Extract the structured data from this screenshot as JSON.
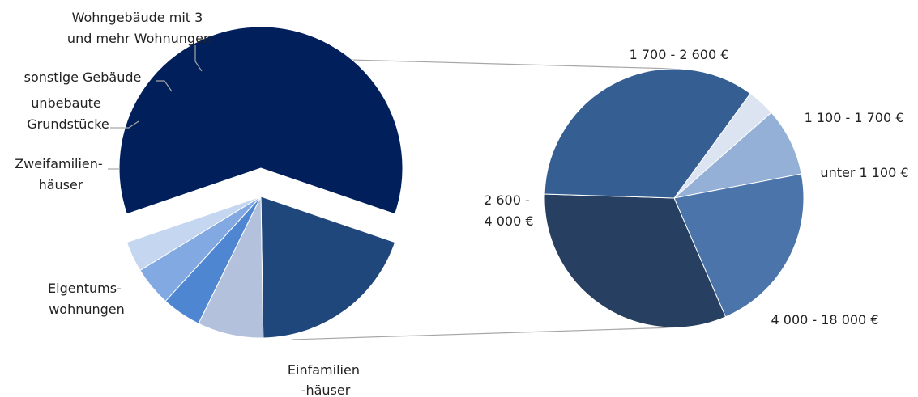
{
  "chart_data": {
    "type": "pie",
    "title": "",
    "main_pie": {
      "categories": [
        "Einfamilien-häuser",
        "Eigentums-wohnungen",
        "Zweifamilien-häuser",
        "unbebaute Grundstücke",
        "sonstige Gebäude",
        "Wohngebäude mit 3 und mehr Wohnungen"
      ],
      "values": [
        60.5,
        19.5,
        7.5,
        4.5,
        4.5,
        3.5
      ],
      "colors": [
        "#001f5b",
        "#1f477b",
        "#b4c1dc",
        "#4f86d2",
        "#82a9e1",
        "#c5d6f0"
      ],
      "exploded_category": "Einfamilien-häuser"
    },
    "detail_pie": {
      "parent_category": "Einfamilien-häuser",
      "categories": [
        "unter 1 100 €",
        "1 100 - 1 700 €",
        "1 700 - 2 600 €",
        "2 600 - 4 000 €",
        "4 000 - 18 000 €"
      ],
      "values": [
        3.5,
        8.5,
        21.5,
        32,
        34.5
      ],
      "colors": [
        "#dce4f2",
        "#94b0d6",
        "#4a74aa",
        "#273f60",
        "#355e92"
      ]
    }
  },
  "labels": {
    "main": [
      {
        "lines": [
          "Wohngebäude mit 3",
          "und mehr Wohnungen"
        ]
      },
      {
        "lines": [
          "sonstige Gebäude"
        ]
      },
      {
        "lines": [
          "unbebaute",
          "Grundstücke"
        ]
      },
      {
        "lines": [
          "Zweifamilien-",
          "häuser"
        ]
      },
      {
        "lines": [
          "Eigentums-",
          "wohnungen"
        ]
      },
      {
        "lines": [
          "Einfamilien",
          "-häuser"
        ]
      }
    ],
    "detail": [
      {
        "lines": [
          "1 700 - 2 600 €"
        ]
      },
      {
        "lines": [
          "1 100 - 1 700 €"
        ]
      },
      {
        "lines": [
          "unter 1 100 €"
        ]
      },
      {
        "lines": [
          "2 600 -",
          "4 000 €"
        ]
      },
      {
        "lines": [
          "4 000 - 18 000 €"
        ]
      }
    ]
  }
}
